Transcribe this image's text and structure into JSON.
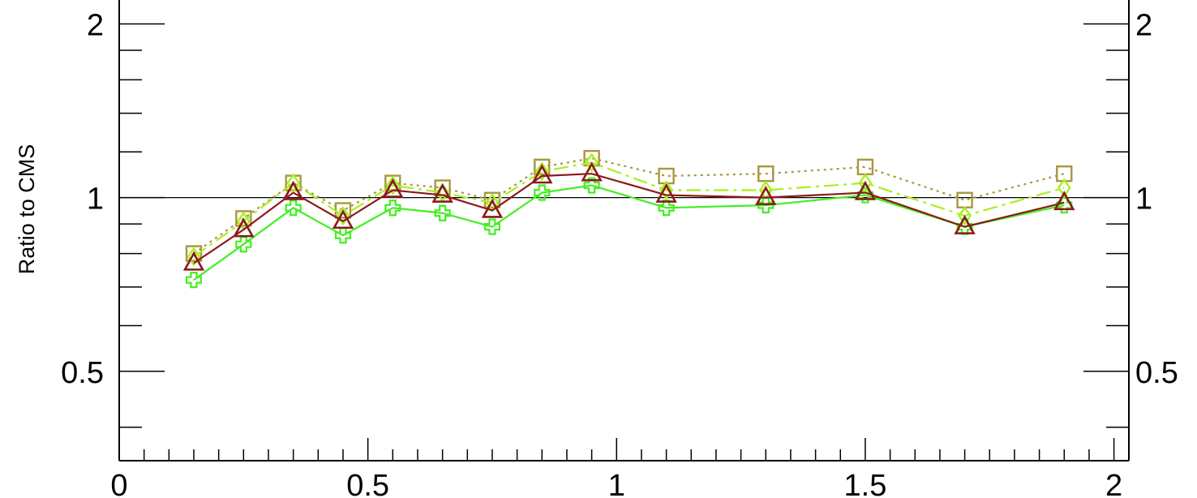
{
  "chart_data": {
    "type": "line",
    "ylabel": "Ratio to CMS",
    "xlabel": "",
    "xlim": [
      0,
      2.03
    ],
    "ylim": [
      0.35,
      2.2
    ],
    "y_scale": "log",
    "reference_line": 1,
    "x_ticks": [
      0,
      0.5,
      1,
      1.5,
      2
    ],
    "x_tick_labels": [
      "0",
      "0.5",
      "1",
      "1.5",
      "2"
    ],
    "y_ticks": [
      0.5,
      1,
      2
    ],
    "y_tick_labels": [
      "0.5",
      "1",
      "2"
    ],
    "x": [
      0.15,
      0.25,
      0.35,
      0.45,
      0.55,
      0.65,
      0.75,
      0.85,
      0.95,
      1.1,
      1.3,
      1.5,
      1.7,
      1.9
    ],
    "series": [
      {
        "color": "#a8973c",
        "marker": "square",
        "line_style": "dotted",
        "values": [
          0.8,
          0.92,
          1.06,
          0.95,
          1.06,
          1.04,
          0.99,
          1.13,
          1.17,
          1.09,
          1.1,
          1.13,
          0.99,
          1.1
        ]
      },
      {
        "color": "#aaee22",
        "marker": "diamond",
        "line_style": "dashdot",
        "values": [
          0.79,
          0.91,
          1.06,
          0.93,
          1.05,
          1.02,
          0.98,
          1.11,
          1.15,
          1.03,
          1.03,
          1.06,
          0.93,
          1.04
        ]
      },
      {
        "color": "#44ee22",
        "marker": "cross",
        "line_style": "solid",
        "values": [
          0.72,
          0.83,
          0.96,
          0.86,
          0.96,
          0.94,
          0.89,
          1.02,
          1.05,
          0.96,
          0.97,
          1.01,
          0.89,
          0.97
        ]
      },
      {
        "color": "#8b1a1a",
        "marker": "triangle",
        "line_style": "solid",
        "values": [
          0.77,
          0.88,
          1.02,
          0.91,
          1.03,
          1.01,
          0.95,
          1.09,
          1.1,
          1.01,
          1.0,
          1.02,
          0.89,
          0.98
        ]
      }
    ]
  }
}
